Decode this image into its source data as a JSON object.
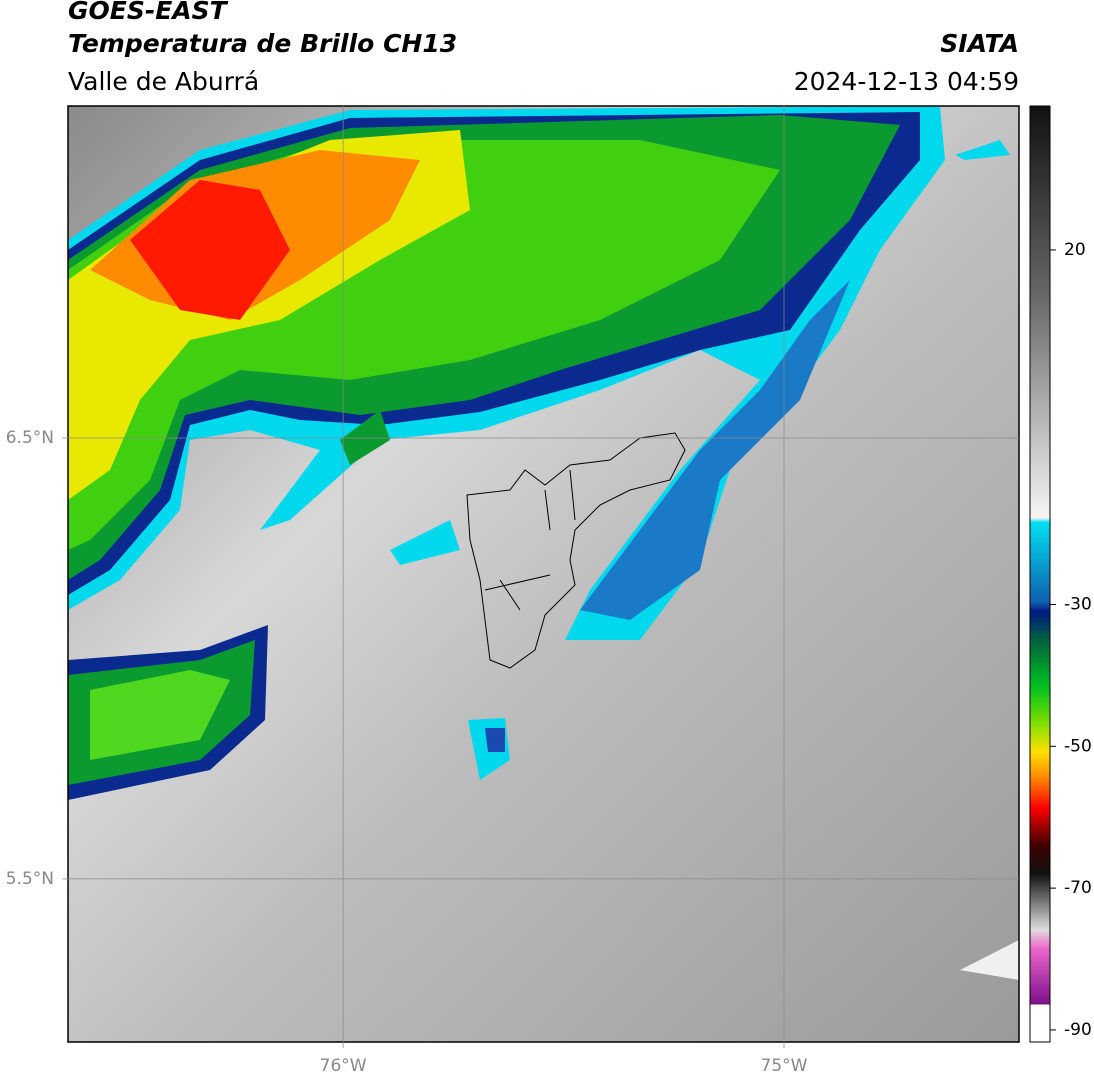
{
  "header": {
    "title": "GOES-EAST",
    "subtitle": "Temperatura de Brillo CH13",
    "region": "Valle de Aburrá",
    "source": "SIATA",
    "datetime": "2024-12-13 04:59"
  },
  "map": {
    "lon_range": [
      -76.624,
      -74.467
    ],
    "lat_range": [
      5.13,
      7.253
    ],
    "lon_ticks": [
      {
        "value": -76,
        "label": "76°W"
      },
      {
        "value": -75,
        "label": "75°W"
      }
    ],
    "lat_ticks": [
      {
        "value": 6.5,
        "label": "6.5°N"
      },
      {
        "value": 5.5,
        "label": "5.5°N"
      }
    ]
  },
  "colorbar": {
    "range": [
      -91.7,
      40.3
    ],
    "ticks": [
      20,
      -30,
      -50,
      -70,
      -90
    ]
  }
}
